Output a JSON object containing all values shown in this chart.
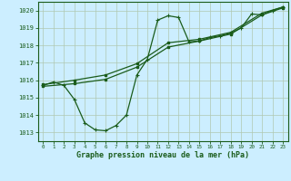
{
  "title": "Graphe pression niveau de la mer (hPa)",
  "background_color": "#cceeff",
  "grid_color": "#b0c8b0",
  "line_color": "#1a5c1a",
  "xlim": [
    -0.5,
    23.5
  ],
  "ylim": [
    1012.5,
    1020.5
  ],
  "yticks": [
    1013,
    1014,
    1015,
    1016,
    1017,
    1018,
    1019,
    1020
  ],
  "xticks": [
    0,
    1,
    2,
    3,
    4,
    5,
    6,
    7,
    8,
    9,
    10,
    11,
    12,
    13,
    14,
    15,
    16,
    17,
    18,
    19,
    20,
    21,
    22,
    23
  ],
  "series1_x": [
    0,
    1,
    2,
    3,
    4,
    5,
    6,
    7,
    8,
    9,
    10,
    11,
    12,
    13,
    14,
    15,
    16,
    17,
    18,
    19,
    20,
    21,
    22,
    23
  ],
  "series1_y": [
    1015.7,
    1015.9,
    1015.7,
    1014.9,
    1013.55,
    1013.15,
    1013.1,
    1013.4,
    1014.0,
    1016.3,
    1017.2,
    1019.45,
    1019.7,
    1019.6,
    1018.2,
    1018.25,
    1018.45,
    1018.55,
    1018.7,
    1019.0,
    1019.8,
    1019.75,
    1020.0,
    1020.2
  ],
  "series2_x": [
    0,
    3,
    6,
    9,
    12,
    15,
    18,
    21,
    23
  ],
  "series2_y": [
    1015.75,
    1016.0,
    1016.3,
    1016.95,
    1018.15,
    1018.35,
    1018.75,
    1019.85,
    1020.2
  ],
  "series3_x": [
    0,
    3,
    6,
    9,
    12,
    15,
    18,
    21,
    23
  ],
  "series3_y": [
    1015.65,
    1015.8,
    1016.05,
    1016.75,
    1017.9,
    1018.25,
    1018.65,
    1019.75,
    1020.15
  ]
}
